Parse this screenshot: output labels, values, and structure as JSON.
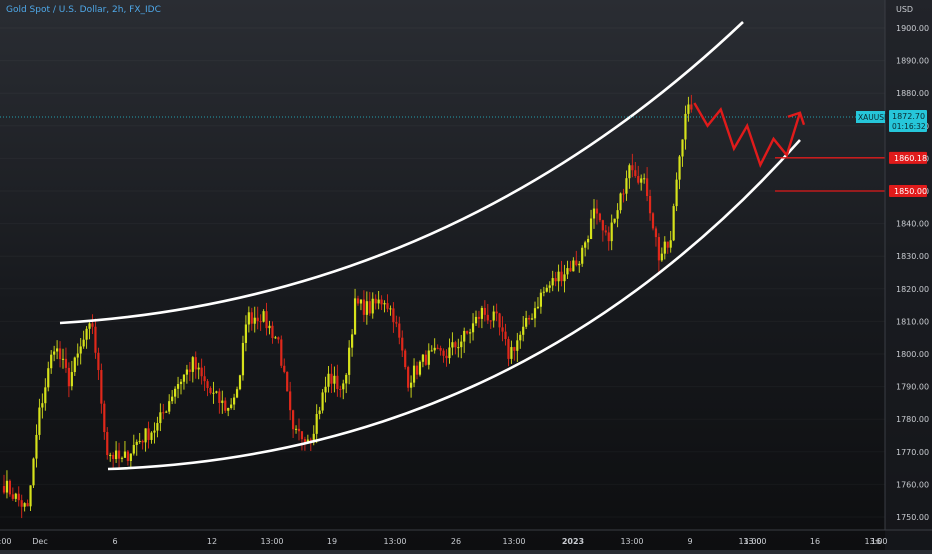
{
  "header": {
    "symbol_title": "Gold Spot / U.S. Dollar, 2h, FX_IDC",
    "currency": "USD"
  },
  "price_axis": {
    "ticks": [
      "1900.00",
      "1890.00",
      "1880.00",
      "1870.00",
      "1860.00",
      "1850.00",
      "1840.00",
      "1830.00",
      "1820.00",
      "1810.00",
      "1800.00",
      "1790.00",
      "1780.00",
      "1770.00",
      "1760.00",
      "1750.00"
    ]
  },
  "last_price": {
    "symbol": "XAUUSD",
    "price": "1872.70",
    "countdown": "01:16:32",
    "color": "#26c6da"
  },
  "levels": [
    {
      "label": "1860.18",
      "value": 1860.18,
      "color": "#e01b1b"
    },
    {
      "label": "1850.00",
      "value": 1850.0,
      "color": "#e01b1b"
    }
  ],
  "time_axis": {
    "ticks": [
      "Dec",
      "6",
      "12",
      "13:00",
      "19",
      "13:00",
      "26",
      "13:00",
      "2023",
      "13:00",
      "9",
      "13:00",
      "13:00",
      "16",
      "13:00"
    ]
  },
  "colors": {
    "up": "#d6e21b",
    "down": "#e0281b",
    "channel": "#ffffff",
    "projection": "#e01b1b",
    "tick_text": "#c9ccd1"
  },
  "chart_data": {
    "type": "candlestick",
    "symbol": "XAUUSD",
    "timeframe": "2h",
    "ylim": [
      1746,
      1906
    ],
    "y_ticks": [
      1750,
      1760,
      1770,
      1780,
      1790,
      1800,
      1810,
      1820,
      1830,
      1840,
      1850,
      1860,
      1870,
      1880,
      1890,
      1900
    ],
    "x_tick_labels": [
      "Dec",
      "6",
      "12",
      "13:00",
      "19",
      "13:00",
      "26",
      "13:00",
      "2023",
      "13:00",
      "9",
      "13:00",
      "13:00",
      "16",
      "13:00"
    ],
    "last_price": 1872.7,
    "horizontal_levels": [
      1860.18,
      1850.0
    ],
    "close_path": [
      {
        "bar": 0,
        "close": 1760
      },
      {
        "bar": 8,
        "close": 1752
      },
      {
        "bar": 12,
        "close": 1782
      },
      {
        "bar": 17,
        "close": 1803
      },
      {
        "bar": 22,
        "close": 1792
      },
      {
        "bar": 27,
        "close": 1804
      },
      {
        "bar": 30,
        "close": 1809
      },
      {
        "bar": 35,
        "close": 1770
      },
      {
        "bar": 40,
        "close": 1767
      },
      {
        "bar": 45,
        "close": 1773
      },
      {
        "bar": 52,
        "close": 1778
      },
      {
        "bar": 58,
        "close": 1790
      },
      {
        "bar": 64,
        "close": 1797
      },
      {
        "bar": 70,
        "close": 1788
      },
      {
        "bar": 76,
        "close": 1783
      },
      {
        "bar": 80,
        "close": 1792
      },
      {
        "bar": 82,
        "close": 1811
      },
      {
        "bar": 87,
        "close": 1812
      },
      {
        "bar": 93,
        "close": 1804
      },
      {
        "bar": 98,
        "close": 1775
      },
      {
        "bar": 104,
        "close": 1775
      },
      {
        "bar": 110,
        "close": 1793
      },
      {
        "bar": 115,
        "close": 1789
      },
      {
        "bar": 119,
        "close": 1815
      },
      {
        "bar": 124,
        "close": 1814
      },
      {
        "bar": 129,
        "close": 1817
      },
      {
        "bar": 132,
        "close": 1812
      },
      {
        "bar": 137,
        "close": 1792
      },
      {
        "bar": 143,
        "close": 1799
      },
      {
        "bar": 150,
        "close": 1800
      },
      {
        "bar": 157,
        "close": 1806
      },
      {
        "bar": 162,
        "close": 1813
      },
      {
        "bar": 167,
        "close": 1810
      },
      {
        "bar": 171,
        "close": 1800
      },
      {
        "bar": 176,
        "close": 1807
      },
      {
        "bar": 182,
        "close": 1818
      },
      {
        "bar": 188,
        "close": 1824
      },
      {
        "bar": 195,
        "close": 1829
      },
      {
        "bar": 200,
        "close": 1843
      },
      {
        "bar": 204,
        "close": 1835
      },
      {
        "bar": 208,
        "close": 1843
      },
      {
        "bar": 212,
        "close": 1860
      },
      {
        "bar": 215,
        "close": 1855
      },
      {
        "bar": 218,
        "close": 1850
      },
      {
        "bar": 222,
        "close": 1830
      },
      {
        "bar": 226,
        "close": 1834
      },
      {
        "bar": 228,
        "close": 1854
      },
      {
        "bar": 231,
        "close": 1875
      },
      {
        "bar": 233,
        "close": 1875
      }
    ],
    "projection": [
      [
        1877,
        0
      ],
      [
        1870,
        0
      ],
      [
        1875,
        0
      ],
      [
        1863,
        0
      ],
      [
        1870,
        0
      ],
      [
        1858,
        0
      ],
      [
        1866,
        0
      ],
      [
        1861,
        0
      ],
      [
        1874,
        0
      ]
    ],
    "projection_time_offsets": [
      0,
      2,
      4,
      6,
      8,
      10,
      12,
      14,
      16
    ]
  }
}
